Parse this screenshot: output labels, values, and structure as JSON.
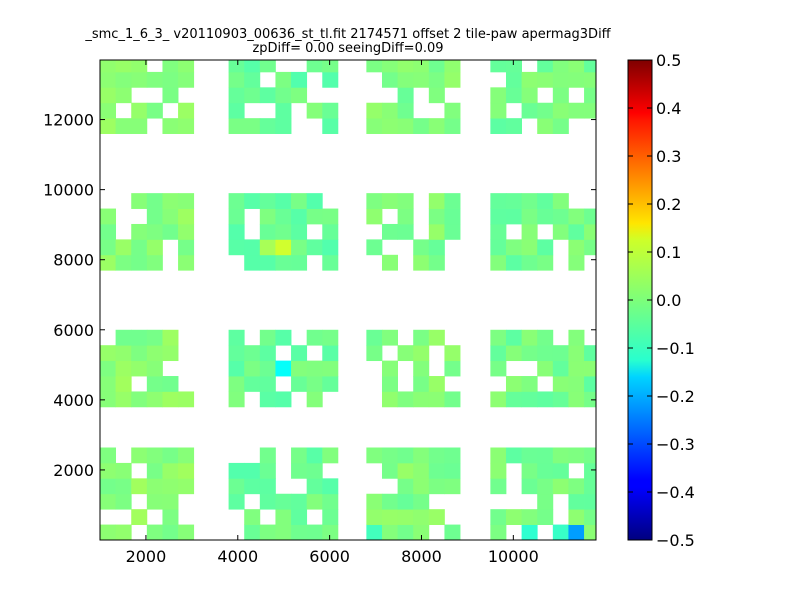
{
  "chart_data": {
    "type": "heatmap",
    "title": "_smc_1_6_3_ v20110903_00636_st_tl.fit 2174571 offset 2 tile-paw apermag3Diff",
    "subtitle": "zpDiff= 0.00 seeingDiff=0.09",
    "xlabel": "",
    "ylabel": "",
    "xlim": [
      1000,
      11800
    ],
    "ylim": [
      0,
      13700
    ],
    "x_ticks": [
      2000,
      4000,
      6000,
      8000,
      10000
    ],
    "y_ticks": [
      2000,
      4000,
      6000,
      8000,
      10000,
      12000
    ],
    "x_tick_labels": [
      "2000",
      "4000",
      "6000",
      "8000",
      "10000"
    ],
    "y_tick_labels": [
      "2000",
      "4000",
      "6000",
      "8000",
      "10000",
      "12000"
    ],
    "grid": false,
    "colormap": "jet",
    "colorbar": {
      "range": [
        -0.5,
        0.5
      ],
      "ticks": [
        0.5,
        0.4,
        0.3,
        0.2,
        0.1,
        0.0,
        -0.1,
        -0.2,
        -0.3,
        -0.4,
        -0.5
      ],
      "tick_labels": [
        "0.5",
        "0.4",
        "0.3",
        "0.2",
        "0.1",
        "0.0",
        "−0.1",
        "−0.2",
        "−0.3",
        "−0.4",
        "−0.5"
      ]
    },
    "cell_size": [
      340,
      440
    ],
    "typical_value": 0.0,
    "block_columns": [
      {
        "x": [
          1000,
          3000
        ],
        "value": 0.01
      },
      {
        "x": [
          3800,
          5900
        ],
        "value": -0.02
      },
      {
        "x": [
          6800,
          8800
        ],
        "value": 0.0
      },
      {
        "x": [
          9500,
          11700
        ],
        "value": -0.01
      }
    ],
    "block_rows": [
      {
        "y": [
          0,
          2300
        ]
      },
      {
        "y": [
          3800,
          5600
        ]
      },
      {
        "y": [
          7700,
          9800
        ]
      },
      {
        "y": [
          11600,
          13700
        ]
      }
    ],
    "highlights": [
      {
        "x": 5100,
        "y": 8400,
        "value": 0.08
      },
      {
        "x": 4700,
        "y": 8400,
        "value": 0.04
      },
      {
        "x": 4900,
        "y": 4900,
        "value": -0.12
      },
      {
        "x": 11300,
        "y": 250,
        "value": -0.22
      },
      {
        "x": 10500,
        "y": 250,
        "value": -0.08
      },
      {
        "x": 11000,
        "y": 250,
        "value": -0.07
      },
      {
        "x": 8900,
        "y": 1500,
        "value": -0.1
      },
      {
        "x": 6900,
        "y": 250,
        "value": -0.06
      }
    ]
  }
}
